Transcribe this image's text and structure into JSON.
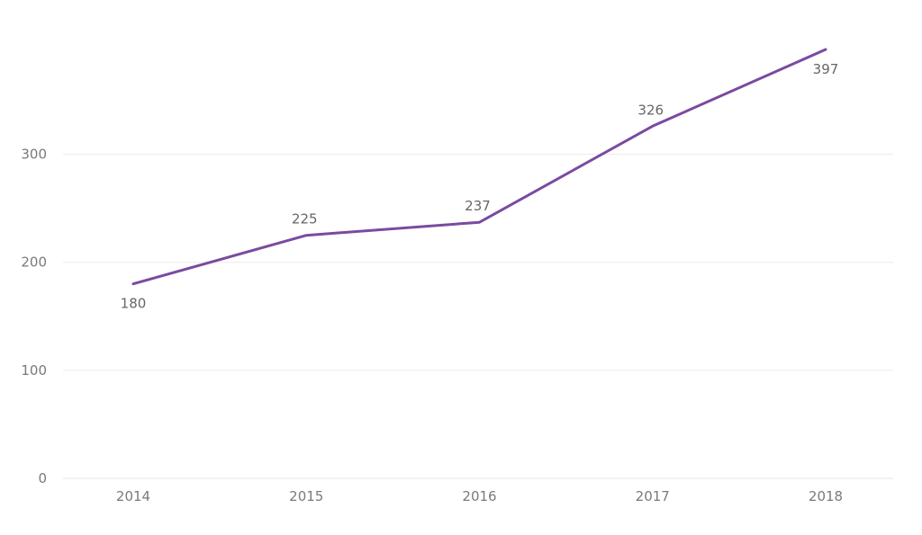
{
  "chart_data": {
    "type": "line",
    "title": "",
    "xlabel": "",
    "ylabel": "",
    "categories": [
      "2014",
      "2015",
      "2016",
      "2017",
      "2018"
    ],
    "series": [
      {
        "values": [
          180,
          225,
          237,
          326,
          397
        ],
        "color": "#7B4AA0"
      }
    ],
    "ylim": [
      0,
      397
    ],
    "yticks": [
      0,
      100,
      200,
      300
    ],
    "grid": true,
    "data_labels": true,
    "legend": "none"
  }
}
